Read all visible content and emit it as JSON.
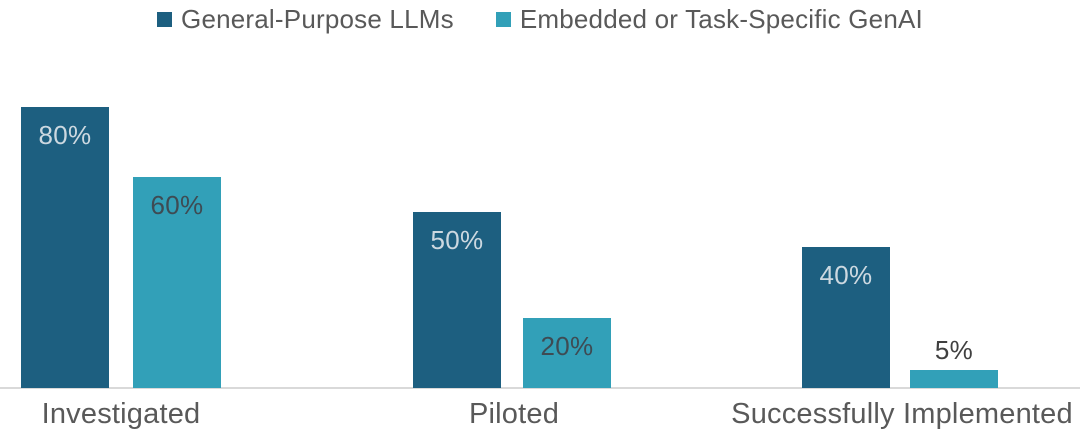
{
  "chart_data": {
    "type": "bar",
    "title": "",
    "categories": [
      "Investigated",
      "Piloted",
      "Successfully Implemented"
    ],
    "series": [
      {
        "name": "General-Purpose LLMs",
        "color": "#1d5f80",
        "values": [
          80,
          50,
          40
        ],
        "labels": [
          "80%",
          "50%",
          "40%"
        ],
        "label_color_inside": "#ccd8e0"
      },
      {
        "name": "Embedded or Task-Specific GenAI",
        "color": "#32a0b8",
        "values": [
          60,
          20,
          5
        ],
        "labels": [
          "60%",
          "20%",
          "5%"
        ],
        "label_color_inside": "#3e4b53"
      }
    ],
    "value_format": "percent",
    "ylim": [
      0,
      100
    ],
    "grid": false,
    "legend_position": "top",
    "label_position": "inside-end",
    "outside_label_color": "#404040",
    "axis_line_color": "#d9d9d9",
    "axis_label_color": "#595959",
    "legend_text_color": "#595959"
  }
}
